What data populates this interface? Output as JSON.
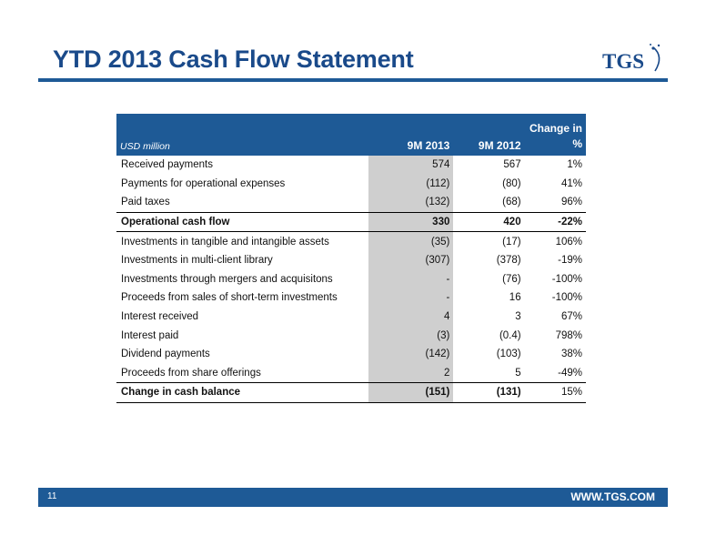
{
  "title": "YTD 2013 Cash Flow Statement",
  "logo_text": "TGS",
  "table": {
    "unit": "USD million",
    "headers": [
      "9M 2013",
      "9M 2012",
      "Change in",
      "%"
    ],
    "rows": [
      {
        "label": "Received payments",
        "v2013": "574",
        "v2012": "567",
        "change": "1%"
      },
      {
        "label": "Payments for operational expenses",
        "v2013": "(112)",
        "v2012": "(80)",
        "change": "41%"
      },
      {
        "label": "Paid taxes",
        "v2013": "(132)",
        "v2012": "(68)",
        "change": "96%"
      },
      {
        "label": "Operational cash flow",
        "v2013": "330",
        "v2012": "420",
        "change": "-22%"
      },
      {
        "label": "Investments in tangible and intangible assets",
        "v2013": "(35)",
        "v2012": "(17)",
        "change": "106%"
      },
      {
        "label": "Investments in multi-client library",
        "v2013": "(307)",
        "v2012": "(378)",
        "change": "-19%"
      },
      {
        "label": "Investments through mergers and acquisitons",
        "v2013": "-",
        "v2012": "(76)",
        "change": "-100%"
      },
      {
        "label": "Proceeds from sales of short-term investments",
        "v2013": "-",
        "v2012": "16",
        "change": "-100%"
      },
      {
        "label": "Interest received",
        "v2013": "4",
        "v2012": "3",
        "change": "67%"
      },
      {
        "label": "Interest paid",
        "v2013": "(3)",
        "v2012": "(0.4)",
        "change": "798%"
      },
      {
        "label": "Dividend payments",
        "v2013": "(142)",
        "v2012": "(103)",
        "change": "38%"
      },
      {
        "label": "Proceeds from share offerings",
        "v2013": "2",
        "v2012": "5",
        "change": "-49%"
      },
      {
        "label": "Change in cash balance",
        "v2013": "(151)",
        "v2012": "(131)",
        "change": "15%"
      }
    ]
  },
  "footer": {
    "page_number": "11",
    "website": "WWW.TGS.COM"
  },
  "colors": {
    "brand_blue": "#1e5a96",
    "title_blue": "#1a4a8a",
    "highlight_column": "#cfcfcf"
  }
}
